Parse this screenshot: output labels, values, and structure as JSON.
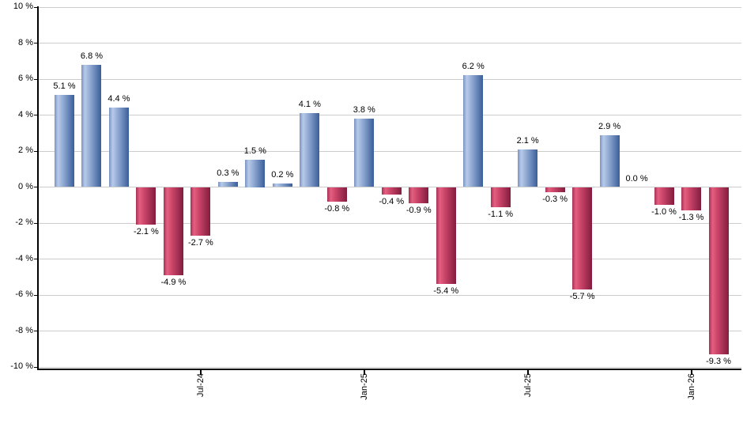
{
  "chart_data": {
    "type": "bar",
    "title": "",
    "xlabel": "",
    "ylabel": "",
    "ylim": [
      -10,
      10
    ],
    "y_tick_step": 2,
    "grid": true,
    "legend": "none",
    "y_tick_labels": [
      "10 %",
      "8 %",
      "6 %",
      "4 %",
      "2 %",
      "0 %",
      "-2 %",
      "-4 %",
      "-6 %",
      "-8 %",
      "-10 %"
    ],
    "y_tick_values": [
      10,
      8,
      6,
      4,
      2,
      0,
      -2,
      -4,
      -6,
      -8,
      -10
    ],
    "x_tick_labels": [
      {
        "bar_index": 5,
        "label": "Jul-24"
      },
      {
        "bar_index": 11,
        "label": "Jan-25"
      },
      {
        "bar_index": 17,
        "label": "Jul-25"
      },
      {
        "bar_index": 23,
        "label": "Jan-26"
      }
    ],
    "values": [
      5.1,
      6.8,
      4.4,
      -2.1,
      -4.9,
      -2.7,
      0.3,
      1.5,
      0.2,
      4.1,
      -0.8,
      3.8,
      -0.4,
      -0.9,
      -5.4,
      6.2,
      -1.1,
      2.1,
      -0.3,
      -5.7,
      2.9,
      0.0,
      -1.0,
      -1.3,
      -9.3
    ],
    "value_labels": [
      "5.1 %",
      "6.8 %",
      "4.4 %",
      "-2.1 %",
      "-4.9 %",
      "-2.7 %",
      "0.3 %",
      "1.5 %",
      "0.2 %",
      "4.1 %",
      "-0.8 %",
      "3.8 %",
      "-0.4 %",
      "-0.9 %",
      "-5.4 %",
      "6.2 %",
      "-1.1 %",
      "2.1 %",
      "-0.3 %",
      "-5.7 %",
      "2.9 %",
      "0.0 %",
      "-1.0 %",
      "-1.3 %",
      "-9.3 %"
    ],
    "colors": {
      "positive_bar": {
        "edge_left": "#7b93c2",
        "highlight": "#b7cae9",
        "mid": "#8fa8d2",
        "edge_right": "#3a5e99"
      },
      "negative_bar": {
        "edge_left": "#a53257",
        "highlight": "#e45f80",
        "mid": "#c84367",
        "edge_right": "#821d3f"
      },
      "gridline": "#cccccc",
      "axis": "#000000",
      "label": "#000000",
      "background": "#ffffff"
    }
  }
}
